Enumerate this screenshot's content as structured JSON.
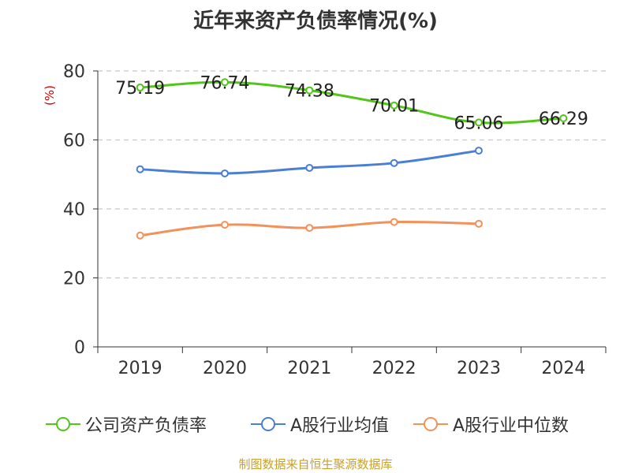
{
  "title": "近年来资产负债率情况(%)",
  "source": "制图数据来自恒生聚源数据库",
  "chart_data": {
    "type": "line",
    "title": "近年来资产负债率情况(%)",
    "ylabel": "(%)",
    "xlabel": "",
    "ylim": [
      0,
      80
    ],
    "yticks": [
      0,
      20,
      40,
      60,
      80
    ],
    "grid": true,
    "legend_position": "bottom",
    "categories": [
      "2019",
      "2020",
      "2021",
      "2022",
      "2023",
      "2024"
    ],
    "series": [
      {
        "name": "公司资产负债率",
        "color": "#52c41a",
        "values": [
          75.19,
          76.74,
          74.38,
          70.01,
          65.06,
          66.29
        ],
        "labels": [
          "75.19",
          "76.74",
          "74.38",
          "70.01",
          "65.06",
          "66.29"
        ]
      },
      {
        "name": "A股行业均值",
        "color": "#4a7fd6",
        "values": [
          51.5,
          50.3,
          51.9,
          53.3,
          56.9,
          null
        ]
      },
      {
        "name": "A股行业中位数",
        "color": "#f4915a",
        "values": [
          32.3,
          35.4,
          34.5,
          36.2,
          35.7,
          null
        ]
      }
    ]
  }
}
